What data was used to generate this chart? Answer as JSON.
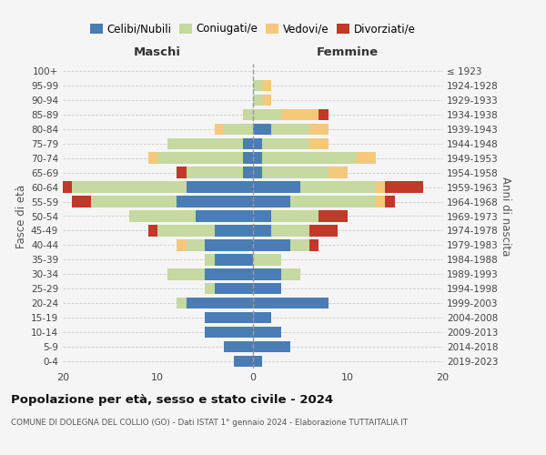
{
  "age_groups": [
    "100+",
    "95-99",
    "90-94",
    "85-89",
    "80-84",
    "75-79",
    "70-74",
    "65-69",
    "60-64",
    "55-59",
    "50-54",
    "45-49",
    "40-44",
    "35-39",
    "30-34",
    "25-29",
    "20-24",
    "15-19",
    "10-14",
    "5-9",
    "0-4"
  ],
  "birth_years": [
    "≤ 1923",
    "1924-1928",
    "1929-1933",
    "1934-1938",
    "1939-1943",
    "1944-1948",
    "1949-1953",
    "1954-1958",
    "1959-1963",
    "1964-1968",
    "1969-1973",
    "1974-1978",
    "1979-1983",
    "1984-1988",
    "1989-1993",
    "1994-1998",
    "1999-2003",
    "2004-2008",
    "2009-2013",
    "2014-2018",
    "2019-2023"
  ],
  "colors": {
    "celibi": "#4a7db5",
    "coniugati": "#c5d9a0",
    "vedovi": "#f5c97a",
    "divorziati": "#c0392b"
  },
  "maschi": {
    "celibi": [
      0,
      0,
      0,
      0,
      0,
      1,
      1,
      1,
      7,
      8,
      6,
      4,
      5,
      4,
      5,
      4,
      7,
      5,
      5,
      3,
      2
    ],
    "coniugati": [
      0,
      0,
      0,
      1,
      3,
      8,
      9,
      6,
      12,
      9,
      7,
      6,
      2,
      1,
      4,
      1,
      1,
      0,
      0,
      0,
      0
    ],
    "vedovi": [
      0,
      0,
      0,
      0,
      1,
      0,
      1,
      0,
      0,
      0,
      0,
      0,
      1,
      0,
      0,
      0,
      0,
      0,
      0,
      0,
      0
    ],
    "divorziati": [
      0,
      0,
      0,
      0,
      0,
      0,
      0,
      1,
      1,
      2,
      0,
      1,
      0,
      0,
      0,
      0,
      0,
      0,
      0,
      0,
      0
    ]
  },
  "femmine": {
    "celibi": [
      0,
      0,
      0,
      0,
      2,
      1,
      1,
      1,
      5,
      4,
      2,
      2,
      4,
      0,
      3,
      3,
      8,
      2,
      3,
      4,
      1
    ],
    "coniugati": [
      0,
      1,
      1,
      3,
      4,
      5,
      10,
      7,
      8,
      9,
      5,
      4,
      2,
      3,
      2,
      0,
      0,
      0,
      0,
      0,
      0
    ],
    "vedovi": [
      0,
      1,
      1,
      4,
      2,
      2,
      2,
      2,
      1,
      1,
      0,
      0,
      0,
      0,
      0,
      0,
      0,
      0,
      0,
      0,
      0
    ],
    "divorziati": [
      0,
      0,
      0,
      1,
      0,
      0,
      0,
      0,
      4,
      1,
      3,
      3,
      1,
      0,
      0,
      0,
      0,
      0,
      0,
      0,
      0
    ]
  },
  "xlim": 20,
  "title": "Popolazione per età, sesso e stato civile - 2024",
  "subtitle": "COMUNE DI DOLEGNA DEL COLLIO (GO) - Dati ISTAT 1° gennaio 2024 - Elaborazione TUTTAITALIA.IT",
  "xlabel_left": "Maschi",
  "xlabel_right": "Femmine",
  "ylabel_left": "Fasce di età",
  "ylabel_right": "Anni di nascita",
  "bg_color": "#f5f5f5",
  "grid_color": "#cccccc"
}
